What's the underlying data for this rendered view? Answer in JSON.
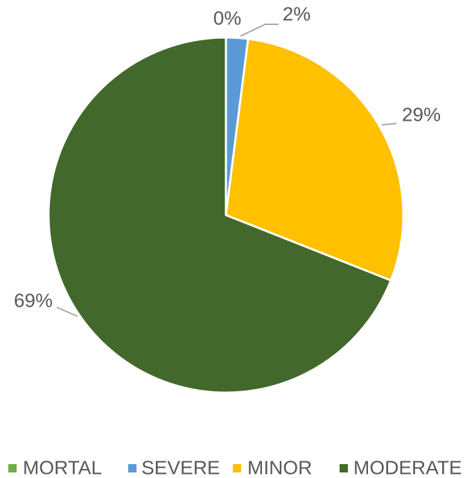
{
  "chart_data": {
    "type": "pie",
    "categories": [
      "MORTAL",
      "SEVERE",
      "MINOR",
      "MODERATE"
    ],
    "values": [
      0,
      2,
      29,
      69
    ],
    "value_labels": [
      "0%",
      "2%",
      "29%",
      "69%"
    ],
    "colors": [
      "#70ad47",
      "#5b9bd5",
      "#ffc000",
      "#43682b"
    ],
    "legend": "bottom"
  }
}
